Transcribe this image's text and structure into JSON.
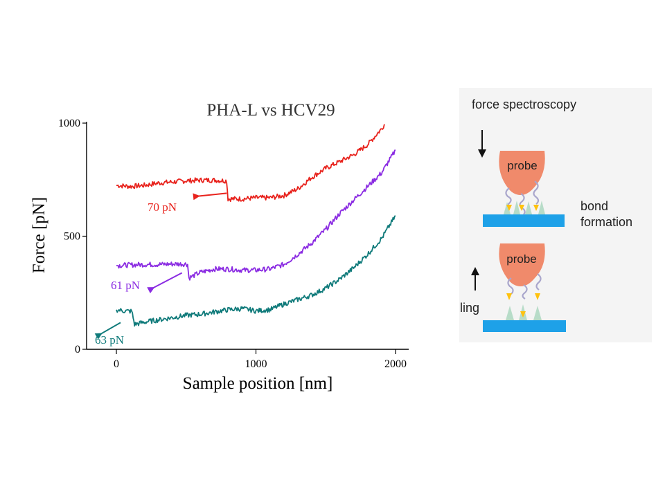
{
  "chart_data": {
    "type": "line",
    "title": "PHA-L vs HCV29",
    "xlabel": "Sample position [nm]",
    "ylabel": "Force [pN]",
    "xlim": [
      -200,
      2050
    ],
    "ylim": [
      0,
      1000
    ],
    "xticks": [
      0,
      1000,
      2000
    ],
    "yticks": [
      0,
      500,
      1000
    ],
    "grid": false,
    "series": [
      {
        "color": "#e8231d",
        "label": "70 pN",
        "points": [
          [
            0,
            725
          ],
          [
            100,
            720
          ],
          [
            200,
            725
          ],
          [
            300,
            735
          ],
          [
            400,
            740
          ],
          [
            500,
            745
          ],
          [
            600,
            748
          ],
          [
            700,
            748
          ],
          [
            790,
            745
          ],
          [
            800,
            665
          ],
          [
            900,
            665
          ],
          [
            1000,
            670
          ],
          [
            1100,
            670
          ],
          [
            1200,
            680
          ],
          [
            1300,
            710
          ],
          [
            1400,
            760
          ],
          [
            1500,
            800
          ],
          [
            1600,
            830
          ],
          [
            1700,
            860
          ],
          [
            1800,
            905
          ],
          [
            1900,
            975
          ],
          [
            1920,
            995
          ]
        ]
      },
      {
        "color": "#8a2be2",
        "label": "61 pN",
        "points": [
          [
            0,
            370
          ],
          [
            100,
            373
          ],
          [
            200,
            375
          ],
          [
            300,
            375
          ],
          [
            400,
            377
          ],
          [
            500,
            377
          ],
          [
            510,
            375
          ],
          [
            520,
            315
          ],
          [
            600,
            340
          ],
          [
            700,
            355
          ],
          [
            800,
            355
          ],
          [
            900,
            350
          ],
          [
            1000,
            350
          ],
          [
            1100,
            355
          ],
          [
            1200,
            375
          ],
          [
            1300,
            420
          ],
          [
            1400,
            470
          ],
          [
            1500,
            530
          ],
          [
            1600,
            600
          ],
          [
            1700,
            660
          ],
          [
            1800,
            720
          ],
          [
            1900,
            780
          ],
          [
            2000,
            880
          ]
        ]
      },
      {
        "color": "#0f7a7a",
        "label": "63 pN",
        "points": [
          [
            0,
            175
          ],
          [
            50,
            170
          ],
          [
            110,
            168
          ],
          [
            120,
            140
          ],
          [
            130,
            110
          ],
          [
            200,
            120
          ],
          [
            300,
            130
          ],
          [
            400,
            140
          ],
          [
            500,
            150
          ],
          [
            600,
            155
          ],
          [
            700,
            165
          ],
          [
            800,
            175
          ],
          [
            900,
            180
          ],
          [
            1000,
            170
          ],
          [
            1100,
            175
          ],
          [
            1200,
            200
          ],
          [
            1300,
            220
          ],
          [
            1400,
            240
          ],
          [
            1500,
            270
          ],
          [
            1600,
            310
          ],
          [
            1700,
            360
          ],
          [
            1800,
            420
          ],
          [
            1900,
            490
          ],
          [
            2000,
            590
          ]
        ]
      }
    ],
    "annotations": [
      {
        "text": "70 pN",
        "color": "#e8231d",
        "from": [
          600,
          678
        ],
        "to": [
          790,
          690
        ]
      },
      {
        "text": "61 pN",
        "color": "#8a2be2",
        "from": [
          275,
          275
        ],
        "to": [
          470,
          338
        ]
      },
      {
        "text": "63 pN",
        "color": "#0f7a7a",
        "from": [
          -100,
          72
        ],
        "to": [
          30,
          118
        ]
      }
    ]
  },
  "diagram": {
    "heading": "force spectroscopy",
    "probe_label_top": "probe",
    "probe_label_bottom": "probe",
    "side_label_top": [
      "bond",
      "formation"
    ],
    "side_label_bottom": "ling",
    "colors": {
      "probe": "#f08a6b",
      "substrate": "#1ea1e8",
      "panel": "#f4f4f4",
      "molecule": "#a9a6cc",
      "receptor": "#b7dcc8",
      "ligand": "#ffc20e"
    }
  }
}
